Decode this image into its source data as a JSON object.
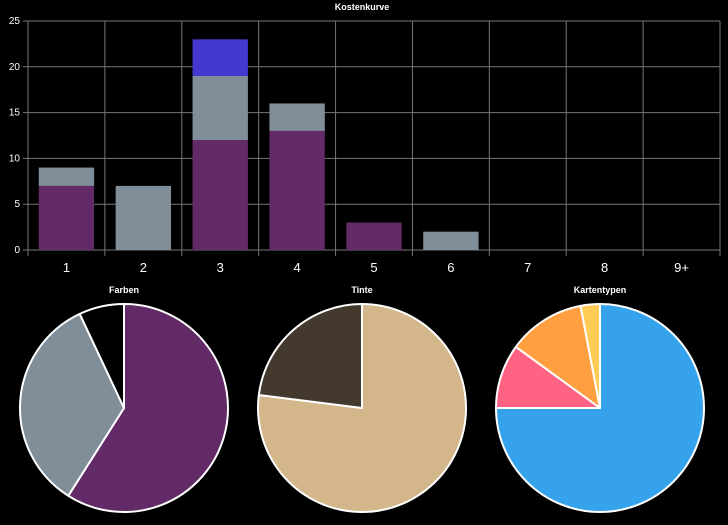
{
  "chart_data": [
    {
      "type": "bar",
      "stacked": true,
      "title": "Kostenkurve",
      "categories": [
        "1",
        "2",
        "3",
        "4",
        "5",
        "6",
        "7",
        "8",
        "9+"
      ],
      "series": [
        {
          "values": [
            7,
            0,
            12,
            13,
            3,
            0,
            0,
            0,
            0
          ],
          "color": "#632a68"
        },
        {
          "values": [
            2,
            7,
            7,
            3,
            0,
            2,
            0,
            0,
            0
          ],
          "color": "#808e99"
        },
        {
          "values": [
            0,
            0,
            4,
            0,
            0,
            0,
            0,
            0,
            0
          ],
          "color": "#4438d0"
        }
      ],
      "ylim": [
        0,
        25
      ],
      "yticks": [
        0,
        5,
        10,
        15,
        20,
        25
      ],
      "grid": true,
      "xlabel": "",
      "ylabel": ""
    },
    {
      "type": "pie",
      "title": "Farben",
      "slices": [
        {
          "value": 59,
          "color": "#632a68"
        },
        {
          "value": 34,
          "color": "#808e99"
        },
        {
          "value": 7,
          "color": "#000000"
        }
      ]
    },
    {
      "type": "pie",
      "title": "Tinte",
      "slices": [
        {
          "value": 77,
          "color": "#d3b68a"
        },
        {
          "value": 23,
          "color": "#433a2d"
        }
      ]
    },
    {
      "type": "pie",
      "title": "Kartentypen",
      "slices": [
        {
          "value": 75,
          "color": "#36a2eb"
        },
        {
          "value": 10,
          "color": "#ff6384"
        },
        {
          "value": 12,
          "color": "#ff9f40"
        },
        {
          "value": 3,
          "color": "#ffcd56"
        }
      ]
    }
  ]
}
